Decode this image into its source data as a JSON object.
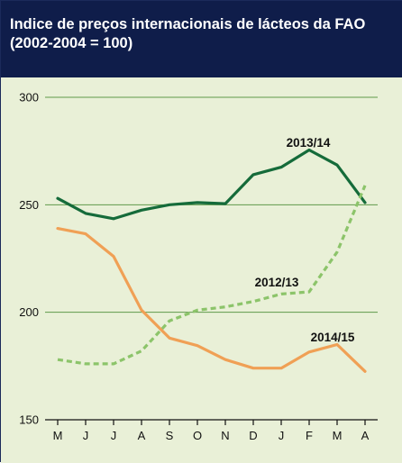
{
  "header": {
    "title_line1": "Indice de preços internacionais de lácteos da FAO",
    "title_line2": "(2002-2004 = 100)"
  },
  "colors": {
    "header_bg": "#0f1d4a",
    "panel_bg": "#e9f0d7",
    "s2013": "#156b3a",
    "s2012": "#8cc46a",
    "s2014": "#f0a055"
  },
  "chart_data": {
    "type": "line",
    "title": "Indice de preços internacionais de lácteos da FAO (2002-2004 = 100)",
    "categories": [
      "M",
      "J",
      "J",
      "A",
      "S",
      "O",
      "N",
      "D",
      "J",
      "F",
      "M",
      "A"
    ],
    "ylim": [
      150,
      300
    ],
    "yticks": [
      150,
      200,
      250,
      300
    ],
    "grid": true,
    "series": [
      {
        "name": "2013/14",
        "style": "solid",
        "color": "#156b3a",
        "values": [
          253,
          246,
          243.5,
          247.5,
          250,
          251,
          250.5,
          264,
          267.5,
          275.5,
          268.5,
          251
        ]
      },
      {
        "name": "2012/13",
        "style": "dashed",
        "color": "#8cc46a",
        "values": [
          178,
          176,
          176,
          182,
          196,
          201,
          202.5,
          205,
          208.5,
          209.5,
          228,
          259
        ]
      },
      {
        "name": "2014/15",
        "style": "solid",
        "color": "#f0a055",
        "values": [
          239,
          236.5,
          226,
          201,
          188,
          184.5,
          178,
          174,
          174,
          181.5,
          185,
          172.5
        ]
      }
    ]
  }
}
